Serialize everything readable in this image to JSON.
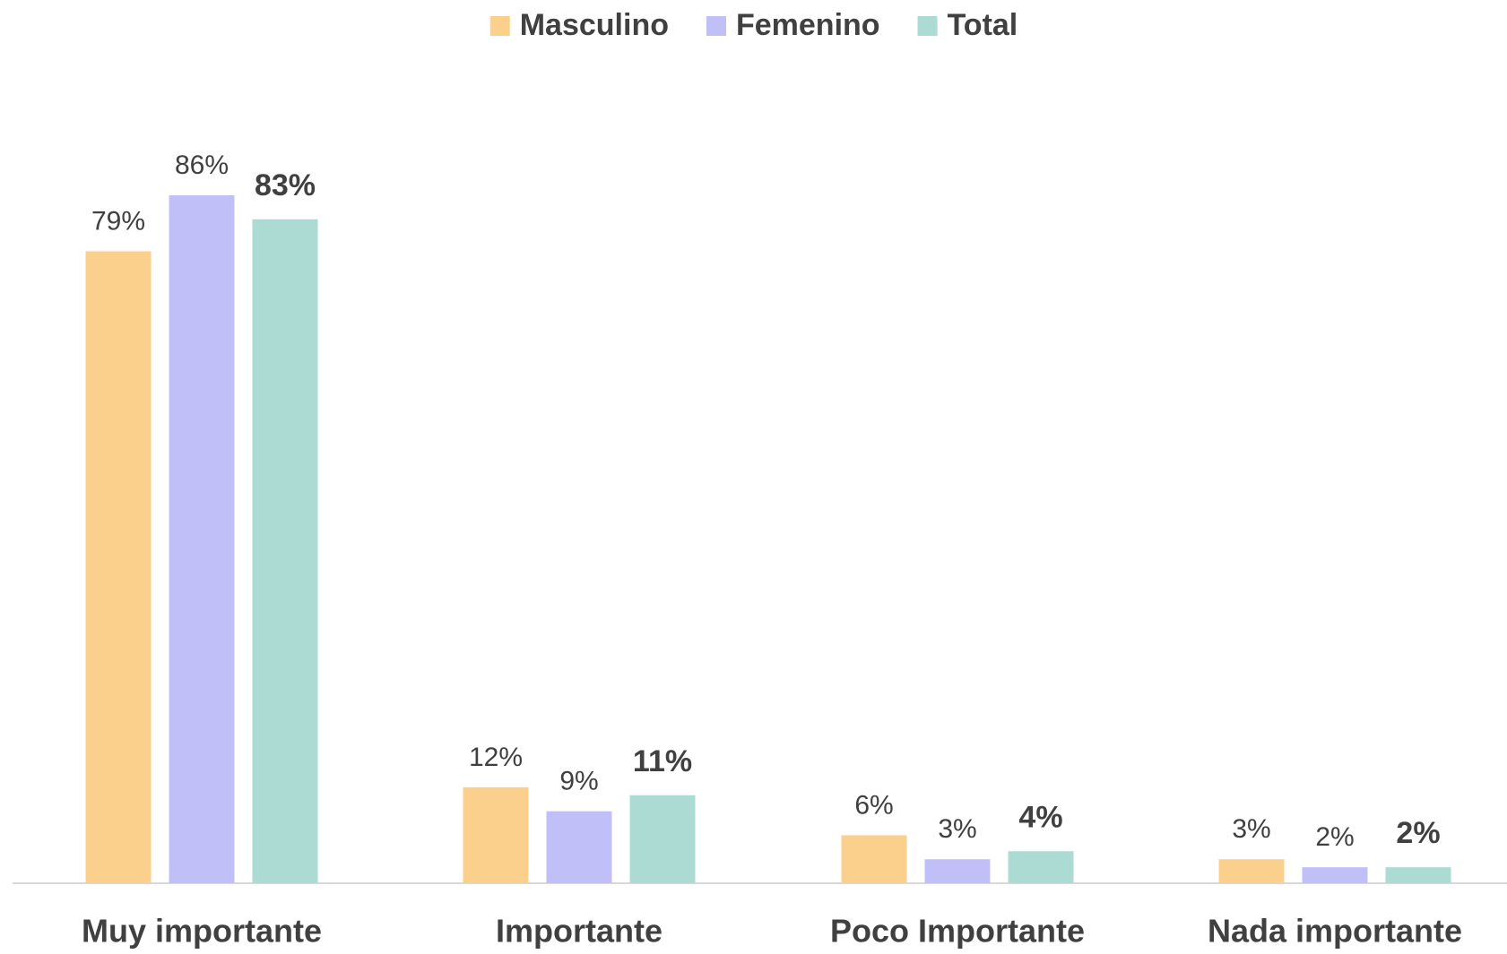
{
  "chart_data": {
    "type": "bar",
    "categories": [
      "Muy importante",
      "Importante",
      "Poco Importante",
      "Nada importante"
    ],
    "series": [
      {
        "name": "Masculino",
        "color": "#fbd08c",
        "values": [
          79,
          12,
          6,
          3
        ],
        "value_labels": [
          "79%",
          "12%",
          "6%",
          "3%"
        ]
      },
      {
        "name": "Femenino",
        "color": "#c0bff8",
        "values": [
          86,
          9,
          3,
          2
        ],
        "value_labels": [
          "86%",
          "9%",
          "3%",
          "2%"
        ]
      },
      {
        "name": "Total",
        "color": "#acdbd3",
        "values": [
          83,
          11,
          4,
          2
        ],
        "value_labels": [
          "83%",
          "11%",
          "4%",
          "2%"
        ]
      }
    ],
    "legend": "top"
  }
}
